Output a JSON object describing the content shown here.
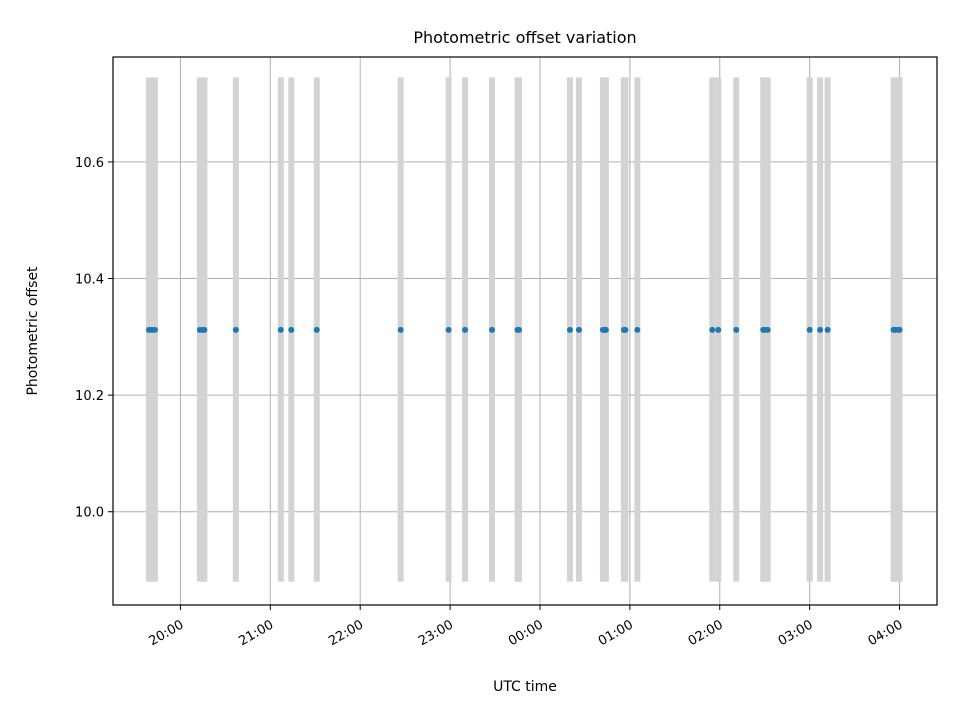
{
  "chart_data": {
    "type": "scatter",
    "title": "Photometric offset variation",
    "xlabel": "UTC time",
    "ylabel": "Photometric offset",
    "x_axis_type": "time",
    "x_ticks": [
      "20:00",
      "21:00",
      "22:00",
      "23:00",
      "00:00",
      "01:00",
      "02:00",
      "03:00",
      "04:00"
    ],
    "y_ticks": [
      "10.0",
      "10.2",
      "10.4",
      "10.6"
    ],
    "y_tick_values": [
      10.0,
      10.2,
      10.4,
      10.6
    ],
    "ylim": [
      9.84,
      10.78
    ],
    "xlim": [
      "19:15",
      "04:25"
    ],
    "grid": true,
    "tick_rotation": 30,
    "band_color": "#d3d3d3",
    "point_color": "#1f77b4",
    "band_range": [
      9.88,
      10.745
    ],
    "series": [
      {
        "values": [
          10.312,
          10.312,
          10.312,
          10.312,
          10.312,
          10.312,
          10.312,
          10.312,
          10.312,
          10.312,
          10.312,
          10.312,
          10.312,
          10.312,
          10.312,
          10.312,
          10.312,
          10.312,
          10.312,
          10.312,
          10.312,
          10.312,
          10.312,
          10.312,
          10.312,
          10.312,
          10.312,
          10.312,
          10.312,
          10.312,
          10.312,
          10.312,
          10.312,
          10.312,
          10.312,
          10.312,
          10.312
        ],
        "x": [
          "19:39",
          "19:41",
          "19:43",
          "20:13",
          "20:15",
          "20:16",
          "20:37",
          "21:07",
          "21:14",
          "21:31",
          "22:27",
          "22:59",
          "23:10",
          "23:28",
          "23:45",
          "23:46",
          "00:20",
          "00:26",
          "00:42",
          "00:43",
          "00:44",
          "00:56",
          "00:57",
          "01:05",
          "01:55",
          "01:59",
          "02:11",
          "02:29",
          "02:30",
          "02:32",
          "03:00",
          "03:07",
          "03:12",
          "03:56",
          "03:57",
          "03:59",
          "04:00"
        ]
      }
    ]
  }
}
